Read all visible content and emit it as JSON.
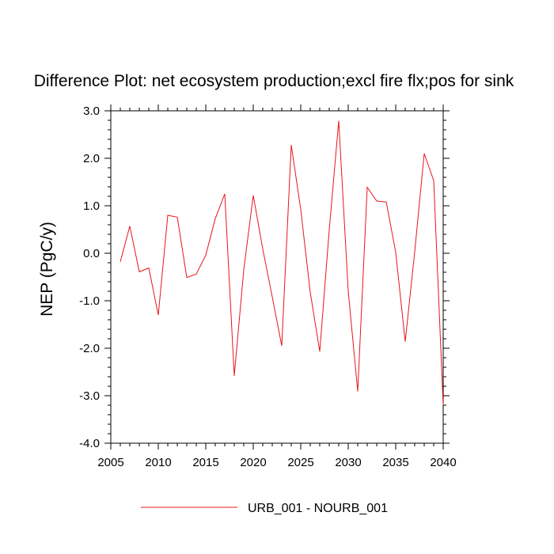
{
  "chart_data": {
    "type": "line",
    "title": "Difference Plot: net ecosystem production;excl fire flx;pos for sink",
    "xlabel": "",
    "ylabel": "NEP  (PgC/y)",
    "xlim": [
      2005,
      2040
    ],
    "ylim": [
      -4.0,
      3.0
    ],
    "x_ticks": [
      2005,
      2010,
      2015,
      2020,
      2025,
      2030,
      2035,
      2040
    ],
    "x_tick_labels": [
      "2005",
      "2010",
      "2015",
      "2020",
      "2025",
      "2030",
      "2035",
      "2040"
    ],
    "y_ticks": [
      -4.0,
      -3.0,
      -2.0,
      -1.0,
      0.0,
      1.0,
      2.0,
      3.0
    ],
    "y_tick_labels": [
      "-4.0",
      "-3.0",
      "-2.0",
      "-1.0",
      "0.0",
      "1.0",
      "2.0",
      "3.0"
    ],
    "series": [
      {
        "name": "URB_001 - NOURB_001",
        "color": "#e8141b",
        "x": [
          2006,
          2007,
          2008,
          2009,
          2010,
          2011,
          2012,
          2013,
          2014,
          2015,
          2016,
          2017,
          2018,
          2019,
          2020,
          2021,
          2022,
          2023,
          2024,
          2025,
          2026,
          2027,
          2028,
          2029,
          2030,
          2031,
          2032,
          2033,
          2034,
          2035,
          2036,
          2037,
          2038,
          2039,
          2040
        ],
        "values": [
          -0.18,
          0.57,
          -0.39,
          -0.31,
          -1.3,
          0.8,
          0.76,
          -0.51,
          -0.44,
          -0.04,
          0.73,
          1.25,
          -2.58,
          -0.35,
          1.22,
          0.09,
          -0.92,
          -1.95,
          2.28,
          0.92,
          -0.82,
          -2.07,
          0.49,
          2.79,
          -0.8,
          -2.91,
          1.39,
          1.1,
          1.08,
          0.02,
          -1.86,
          0.03,
          2.1,
          1.53,
          -3.2
        ]
      }
    ],
    "legend": {
      "position": "bottom-center",
      "entries": [
        "URB_001 - NOURB_001"
      ]
    }
  }
}
